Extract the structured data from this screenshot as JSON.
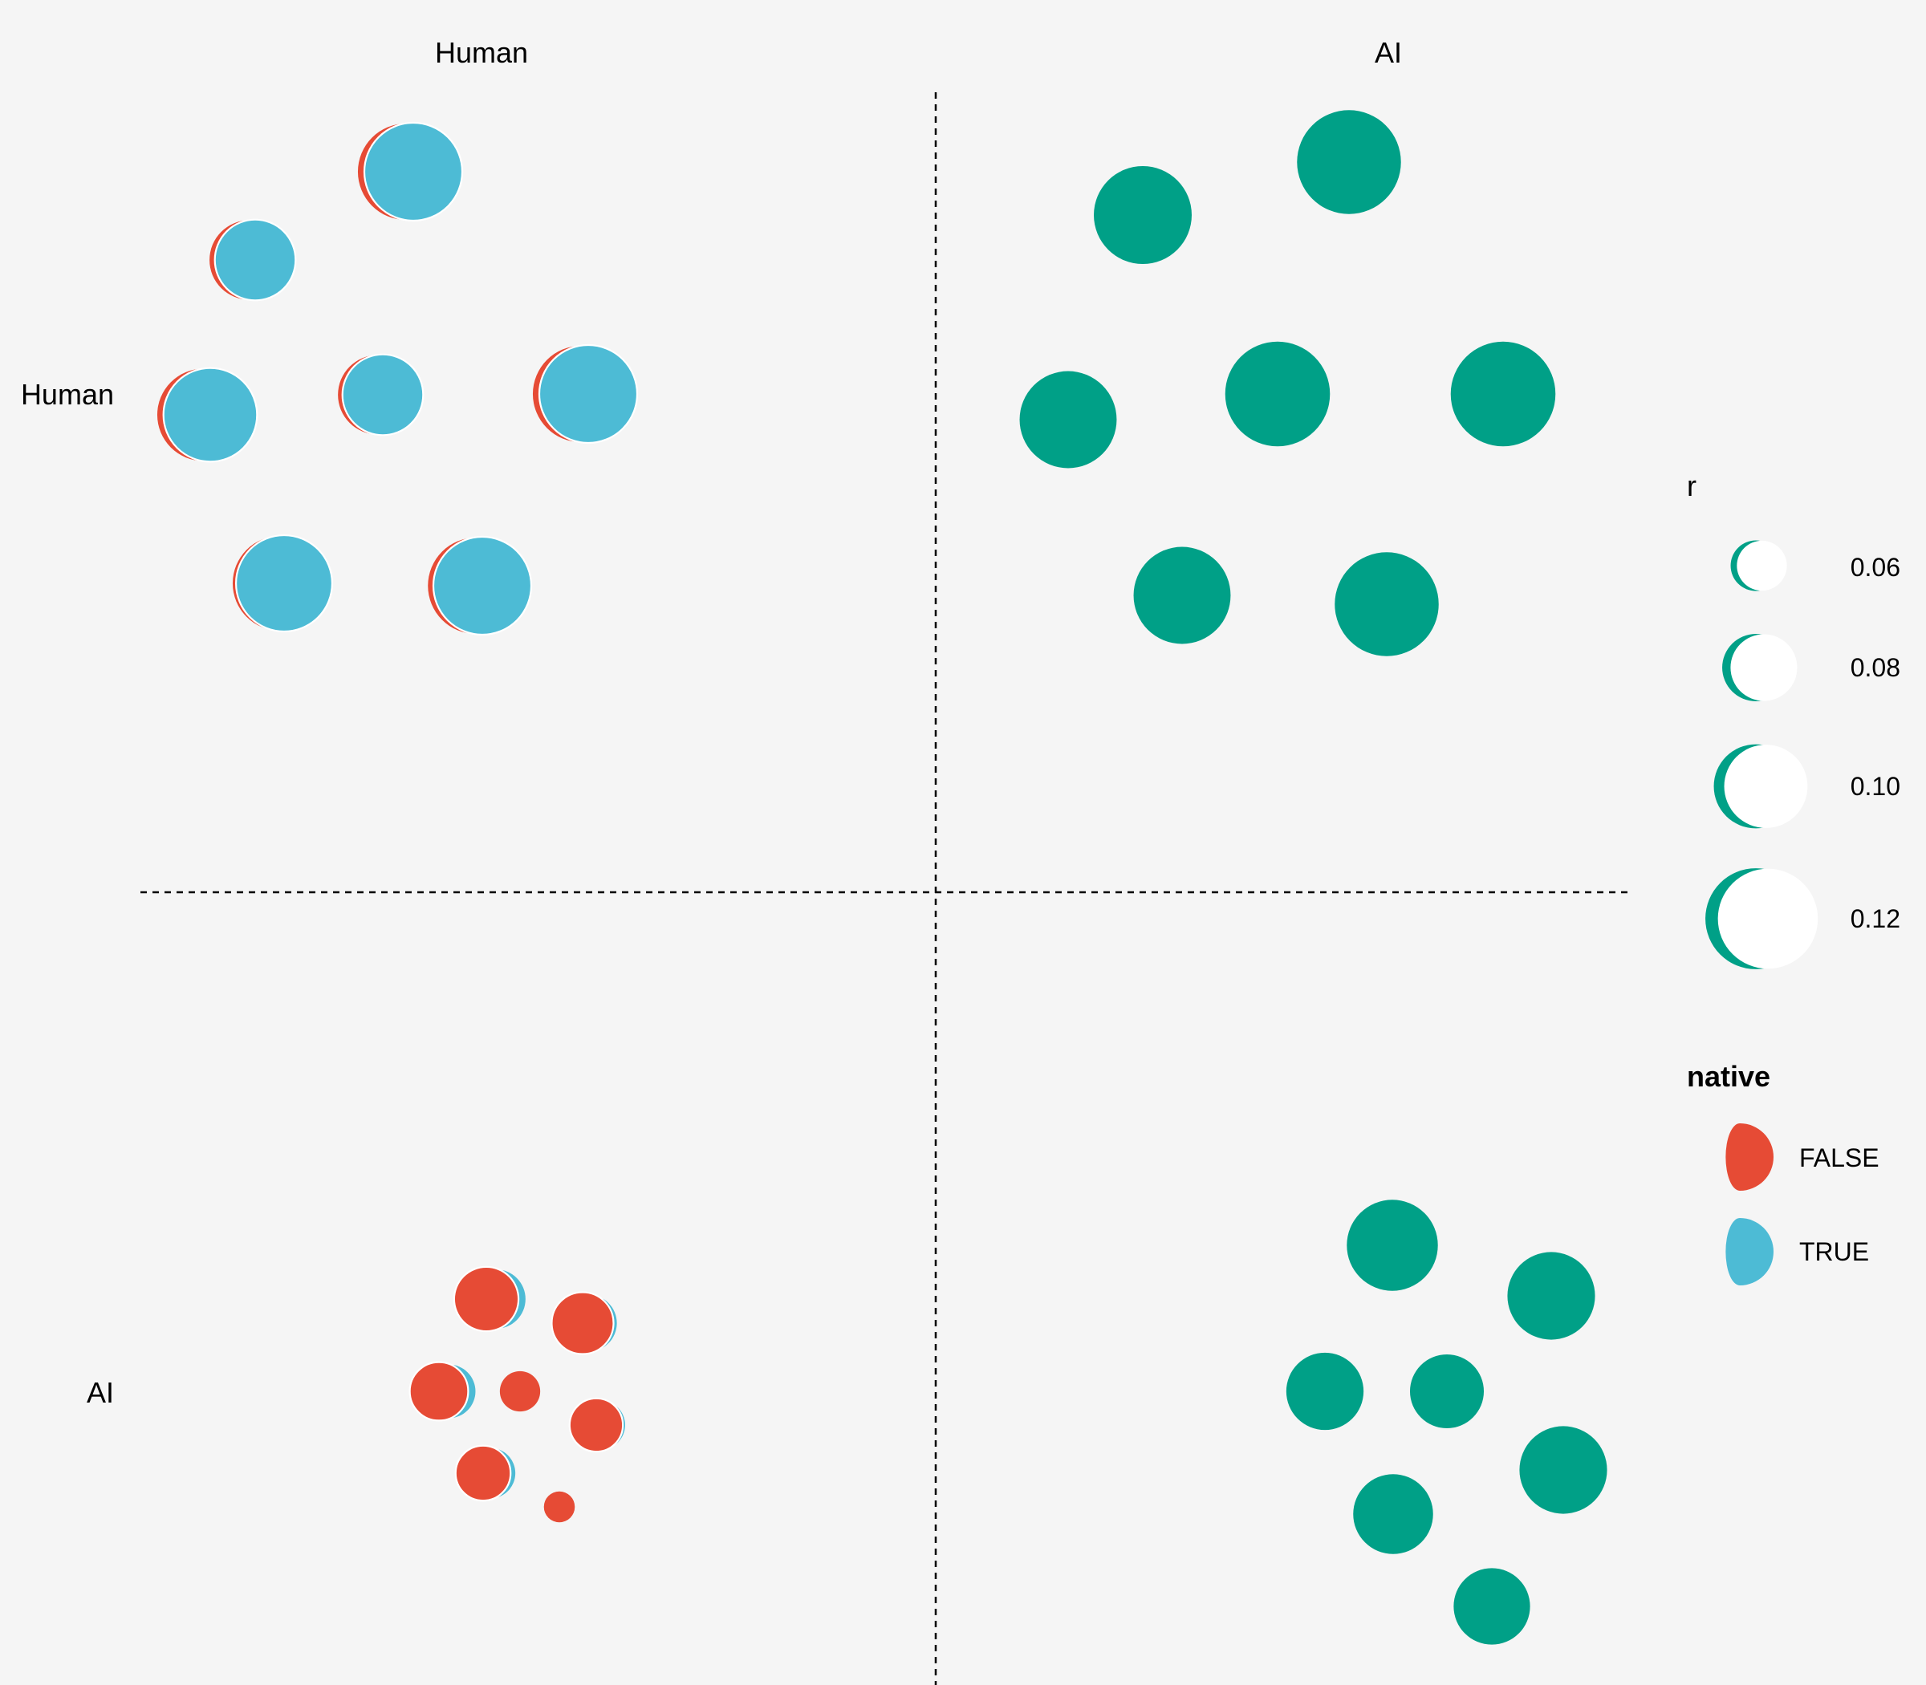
{
  "chart_data": {
    "type": "scatter",
    "title": "",
    "col_labels": [
      "Human",
      "AI"
    ],
    "row_labels": [
      "Human",
      "AI"
    ],
    "colors": {
      "false": "#e64b35",
      "true": "#4dbbd5",
      "single": "#00a087",
      "legend_fill": "#ffffff",
      "divider": "#000000",
      "background": "#f5f5f5"
    },
    "legend_r": {
      "title": "r",
      "items": [
        {
          "label": "0.06",
          "value": 0.06
        },
        {
          "label": "0.08",
          "value": 0.08
        },
        {
          "label": "0.10",
          "value": 0.1
        },
        {
          "label": "0.12",
          "value": 0.12
        }
      ]
    },
    "legend_native": {
      "title": "native",
      "items": [
        {
          "label": "FALSE",
          "key": "false"
        },
        {
          "label": "TRUE",
          "key": "true"
        }
      ]
    },
    "panels": [
      {
        "row": "Human",
        "col": "Human",
        "kind": "split",
        "glyphs": [
          {
            "r": 0.114,
            "native_false": 0.12,
            "native_true": 0.88
          },
          {
            "r": 0.094,
            "native_false": 0.12,
            "native_true": 0.88
          },
          {
            "r": 0.094,
            "native_false": 0.1,
            "native_true": 0.9
          },
          {
            "r": 0.109,
            "native_false": 0.12,
            "native_true": 0.88
          },
          {
            "r": 0.114,
            "native_false": 0.12,
            "native_true": 0.88
          },
          {
            "r": 0.112,
            "native_false": 0.06,
            "native_true": 0.94
          },
          {
            "r": 0.114,
            "native_false": 0.1,
            "native_true": 0.9
          }
        ]
      },
      {
        "row": "Human",
        "col": "AI",
        "kind": "single",
        "glyphs": [
          {
            "r": 0.114
          },
          {
            "r": 0.121
          },
          {
            "r": 0.113
          },
          {
            "r": 0.122
          },
          {
            "r": 0.122
          },
          {
            "r": 0.113
          },
          {
            "r": 0.121
          }
        ]
      },
      {
        "row": "AI",
        "col": "Human",
        "kind": "split",
        "glyphs": [
          {
            "r": 0.075,
            "native_false": 0.78,
            "native_true": 0.22
          },
          {
            "r": 0.072,
            "native_false": 0.88,
            "native_true": 0.12
          },
          {
            "r": 0.068,
            "native_false": 0.75,
            "native_true": 0.25
          },
          {
            "r": 0.047,
            "native_false": 1.0,
            "native_true": 0.0
          },
          {
            "r": 0.062,
            "native_false": 0.9,
            "native_true": 0.1
          },
          {
            "r": 0.064,
            "native_false": 0.82,
            "native_true": 0.18
          },
          {
            "r": 0.036,
            "native_false": 1.0,
            "native_true": 0.0
          }
        ]
      },
      {
        "row": "AI",
        "col": "AI",
        "kind": "single",
        "glyphs": [
          {
            "r": 0.106
          },
          {
            "r": 0.102
          },
          {
            "r": 0.09
          },
          {
            "r": 0.086
          },
          {
            "r": 0.102
          },
          {
            "r": 0.093
          },
          {
            "r": 0.089
          }
        ]
      }
    ]
  }
}
